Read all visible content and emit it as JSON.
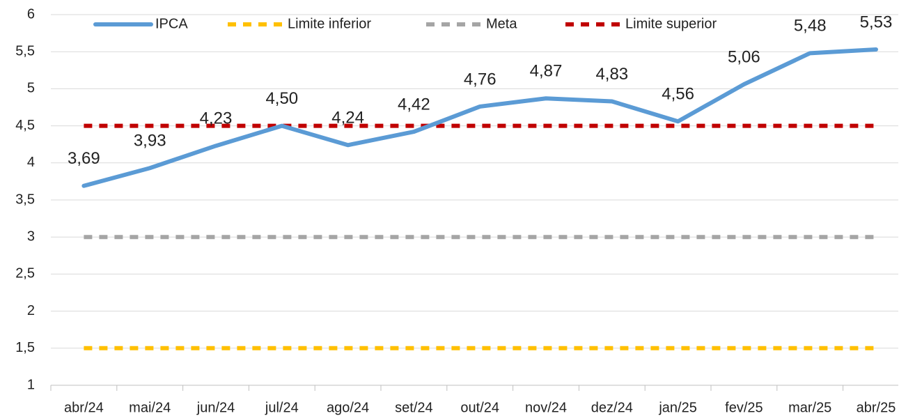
{
  "chart_data": {
    "type": "line",
    "categories": [
      "abr/24",
      "mai/24",
      "jun/24",
      "jul/24",
      "ago/24",
      "set/24",
      "out/24",
      "nov/24",
      "dez/24",
      "jan/25",
      "fev/25",
      "mar/25",
      "abr/25"
    ],
    "series": [
      {
        "name": "IPCA",
        "color": "#5b9bd5",
        "dashed": false,
        "values": [
          3.69,
          3.93,
          4.23,
          4.5,
          4.24,
          4.42,
          4.76,
          4.87,
          4.83,
          4.56,
          5.06,
          5.48,
          5.53
        ],
        "value_labels": [
          "3,69",
          "3,93",
          "4,23",
          "4,50",
          "4,24",
          "4,42",
          "4,76",
          "4,87",
          "4,83",
          "4,56",
          "5,06",
          "5,48",
          "5,53"
        ]
      },
      {
        "name": "Limite inferior",
        "color": "#ffc000",
        "dashed": true,
        "values": [
          1.5,
          1.5,
          1.5,
          1.5,
          1.5,
          1.5,
          1.5,
          1.5,
          1.5,
          1.5,
          1.5,
          1.5,
          1.5
        ]
      },
      {
        "name": "Meta",
        "color": "#a5a5a5",
        "dashed": true,
        "values": [
          3,
          3,
          3,
          3,
          3,
          3,
          3,
          3,
          3,
          3,
          3,
          3,
          3
        ]
      },
      {
        "name": "Limite superior",
        "color": "#c00000",
        "dashed": true,
        "values": [
          4.5,
          4.5,
          4.5,
          4.5,
          4.5,
          4.5,
          4.5,
          4.5,
          4.5,
          4.5,
          4.5,
          4.5,
          4.5
        ]
      }
    ],
    "ylim": [
      1,
      6
    ],
    "yticks": [
      1,
      {
        "value": 1.5,
        "label": "1,5"
      },
      2,
      {
        "value": 2.5,
        "label": "2,5"
      },
      3,
      {
        "value": 3.5,
        "label": "3,5"
      },
      4,
      {
        "value": 4.5,
        "label": "4,5"
      },
      5,
      {
        "value": 5.5,
        "label": "5,5"
      },
      6
    ],
    "grid": true,
    "legend": "top"
  }
}
